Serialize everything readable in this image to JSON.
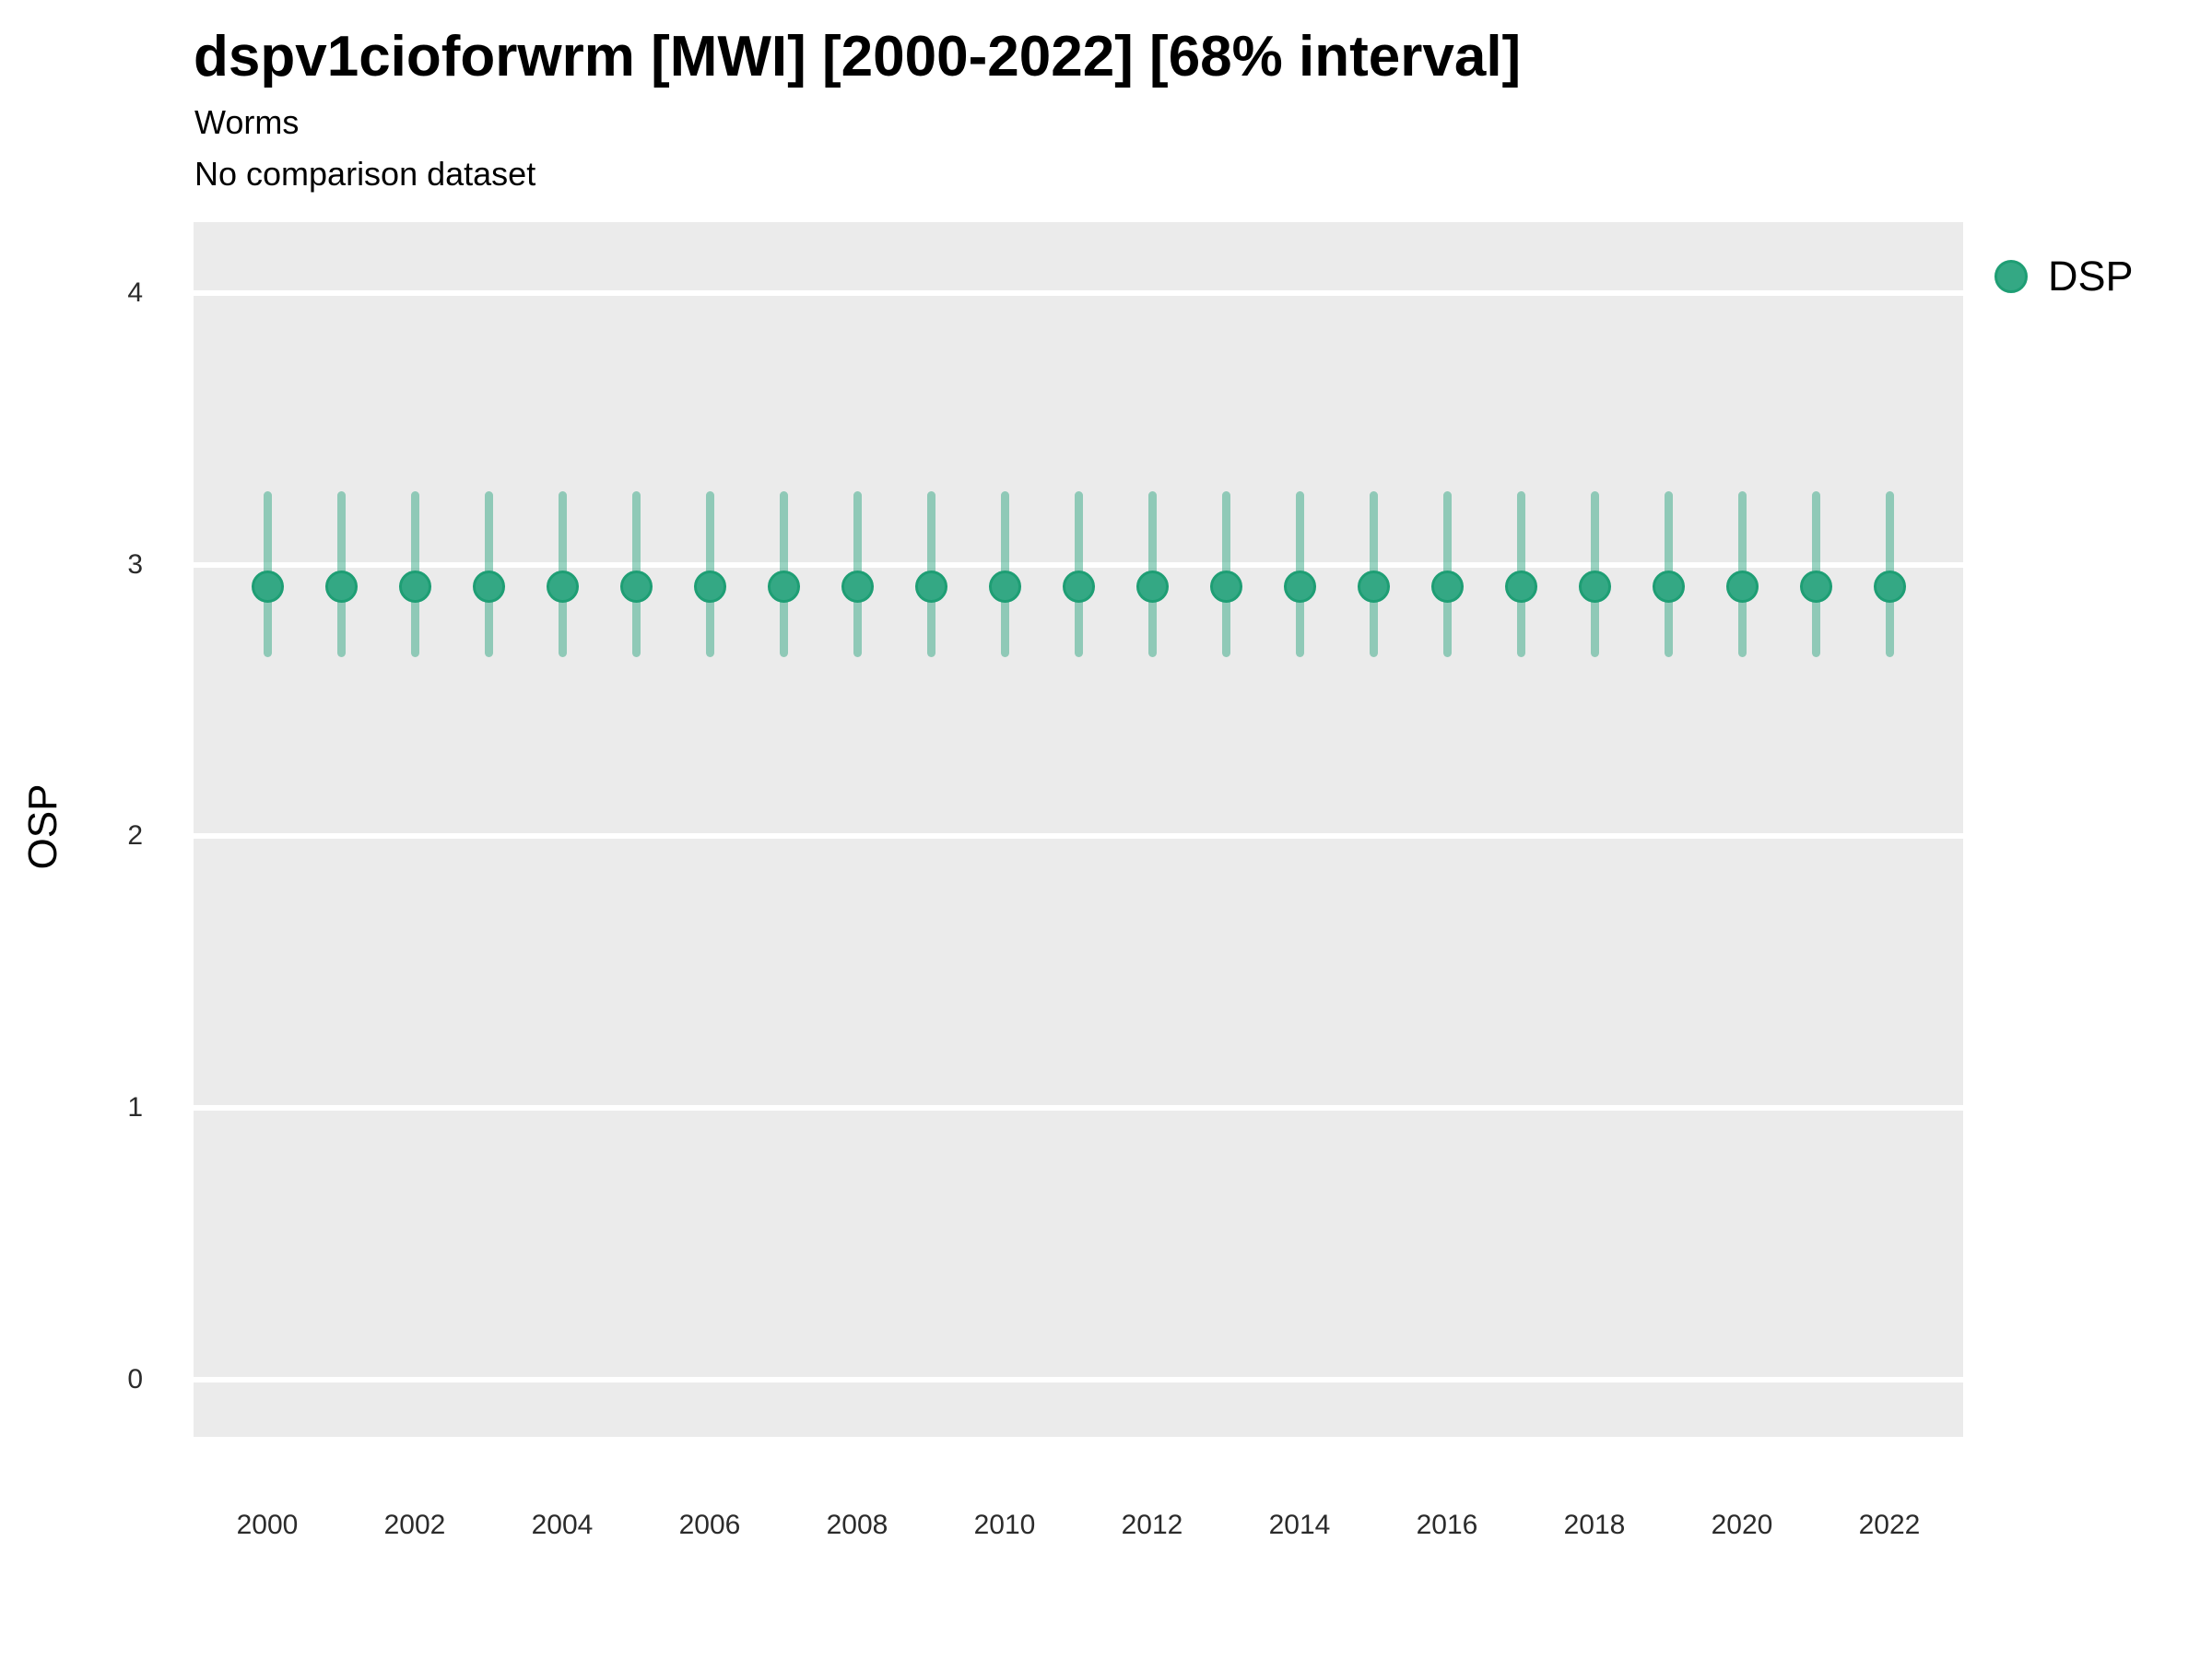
{
  "title": "dspv1cioforwrm [MWI] [2000-2022] [68% interval]",
  "subtitle": "Worms",
  "note": "No comparison dataset",
  "legend": {
    "position": "right",
    "items": [
      {
        "label": "DSP",
        "color": "#34A884"
      }
    ]
  },
  "colors": {
    "point_fill": "#34A884",
    "point_stroke": "#1E9E74",
    "interval_line": "rgba(52,168,132,0.5)",
    "panel_background": "#EBEBEB",
    "gridline": "#FFFFFF",
    "tick_text": "#2b2b2b",
    "title_text": "#000000"
  },
  "chart_data": {
    "type": "scatter",
    "title": "dspv1cioforwrm [MWI] [2000-2022] [68% interval]",
    "subtitle": "Worms",
    "note": "No comparison dataset",
    "xlabel": "",
    "ylabel": "OSP",
    "xlim": [
      1999,
      2023
    ],
    "ylim": [
      -0.21,
      4.26
    ],
    "x_ticks": [
      2000,
      2002,
      2004,
      2006,
      2008,
      2010,
      2012,
      2014,
      2016,
      2018,
      2020,
      2022
    ],
    "y_ticks": [
      0,
      1,
      2,
      3,
      4
    ],
    "grid": "major-horizontal",
    "legend_position": "right",
    "interval": "68%",
    "series": [
      {
        "name": "DSP",
        "x": [
          2000,
          2001,
          2002,
          2003,
          2004,
          2005,
          2006,
          2007,
          2008,
          2009,
          2010,
          2011,
          2012,
          2013,
          2014,
          2015,
          2016,
          2017,
          2018,
          2019,
          2020,
          2021,
          2022
        ],
        "y": [
          2.92,
          2.92,
          2.92,
          2.92,
          2.92,
          2.92,
          2.92,
          2.92,
          2.92,
          2.92,
          2.92,
          2.92,
          2.92,
          2.92,
          2.92,
          2.92,
          2.92,
          2.92,
          2.92,
          2.92,
          2.92,
          2.92,
          2.92
        ],
        "y_lower": [
          2.66,
          2.66,
          2.66,
          2.66,
          2.66,
          2.66,
          2.66,
          2.66,
          2.66,
          2.66,
          2.66,
          2.66,
          2.66,
          2.66,
          2.66,
          2.66,
          2.66,
          2.66,
          2.66,
          2.66,
          2.66,
          2.66,
          2.66
        ],
        "y_upper": [
          3.27,
          3.27,
          3.27,
          3.27,
          3.27,
          3.27,
          3.27,
          3.27,
          3.27,
          3.27,
          3.27,
          3.27,
          3.27,
          3.27,
          3.27,
          3.27,
          3.27,
          3.27,
          3.27,
          3.27,
          3.27,
          3.27,
          3.27
        ]
      }
    ]
  }
}
